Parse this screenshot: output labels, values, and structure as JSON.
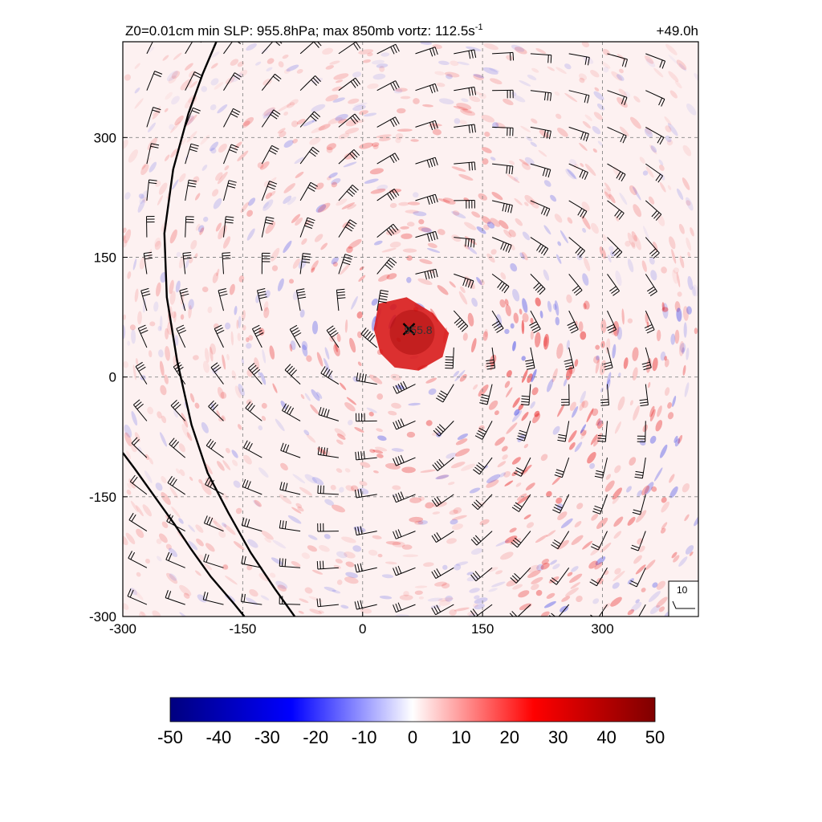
{
  "chart_data": {
    "type": "heatmap",
    "title": {
      "left": "Z0=0.01cm  min SLP: 955.8hPa; max 850mb vortz: 112.5s",
      "left_superscript": "-1",
      "right": "+49.0h"
    },
    "xlim": [
      -300,
      420
    ],
    "ylim": [
      -300,
      420
    ],
    "xticks": [
      -300,
      -150,
      0,
      150,
      300
    ],
    "xtick_labels": [
      "-300",
      "-150",
      "0",
      "150",
      "300"
    ],
    "yticks": [
      -300,
      -150,
      0,
      150,
      300
    ],
    "ytick_labels": [
      "-300",
      "-150",
      "0",
      "150",
      "300"
    ],
    "grid": true,
    "colorbar": {
      "min": -50,
      "max": 50,
      "ticks": [
        -50,
        -40,
        -30,
        -20,
        -10,
        0,
        10,
        20,
        30,
        40,
        50
      ],
      "tick_labels": [
        "-50",
        "-40",
        "-30",
        "-20",
        "-10",
        "0",
        "10",
        "20",
        "30",
        "40",
        "50"
      ],
      "colors": [
        "#00007f",
        "#0000ff",
        "#ffffff",
        "#ff0000",
        "#7f0000"
      ]
    },
    "center": {
      "x": 58,
      "y": 60,
      "label": "955.8",
      "marker": "x-icon"
    },
    "coastline": {
      "line1": [
        [
          -183,
          420
        ],
        [
          -200,
          380
        ],
        [
          -218,
          330
        ],
        [
          -237,
          260
        ],
        [
          -248,
          180
        ],
        [
          -245,
          100
        ],
        [
          -232,
          20
        ],
        [
          -214,
          -60
        ],
        [
          -194,
          -120
        ],
        [
          -168,
          -170
        ],
        [
          -140,
          -220
        ],
        [
          -110,
          -265
        ],
        [
          -85,
          -300
        ]
      ],
      "line2": [
        [
          -300,
          -95
        ],
        [
          -285,
          -115
        ],
        [
          -260,
          -150
        ],
        [
          -235,
          -185
        ],
        [
          -215,
          -215
        ],
        [
          -190,
          -250
        ],
        [
          -160,
          -285
        ],
        [
          -148,
          -300
        ]
      ]
    },
    "wind_reference": {
      "label": "10"
    }
  }
}
